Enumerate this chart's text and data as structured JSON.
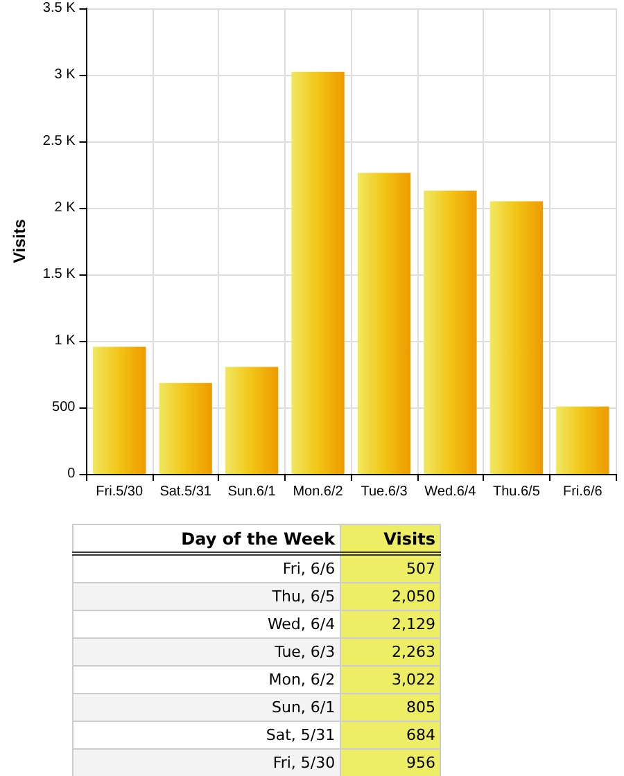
{
  "chart_data": [
    {
      "type": "bar",
      "ylabel": "Visits",
      "categories": [
        "Fri.5/30",
        "Sat.5/31",
        "Sun.6/1",
        "Mon.6/2",
        "Tue.6/3",
        "Wed.6/4",
        "Thu.6/5",
        "Fri.6/6"
      ],
      "values": [
        956,
        684,
        805,
        3022,
        2263,
        2129,
        2050,
        507
      ],
      "color": "#f2c416",
      "ylim": [
        0,
        3500
      ],
      "yticks": [
        0,
        500,
        {
          "value": 1000,
          "label": "1 K"
        },
        {
          "value": 1500,
          "label": "1.5 K"
        },
        {
          "value": 2000,
          "label": "2 K"
        },
        {
          "value": 2500,
          "label": "2.5 K"
        },
        {
          "value": 3000,
          "label": "3 K"
        },
        {
          "value": 3500,
          "label": "3.5 K"
        }
      ],
      "grid": true
    },
    {
      "type": "other",
      "xlabel": "Day of the Week",
      "ylabel": "Visits",
      "categories": [
        "Fri, 6/6",
        "Thu, 6/5",
        "Wed, 6/4",
        "Tue, 6/3",
        "Mon, 6/2",
        "Sun, 6/1",
        "Sat, 5/31",
        "Fri, 5/30"
      ],
      "values": [
        507,
        2050,
        2129,
        2263,
        3022,
        805,
        684,
        956
      ],
      "value_labels": [
        "507",
        "2,050",
        "2,129",
        "2,263",
        "3,022",
        "805",
        "684",
        "956"
      ],
      "color": "#eeee66"
    }
  ]
}
